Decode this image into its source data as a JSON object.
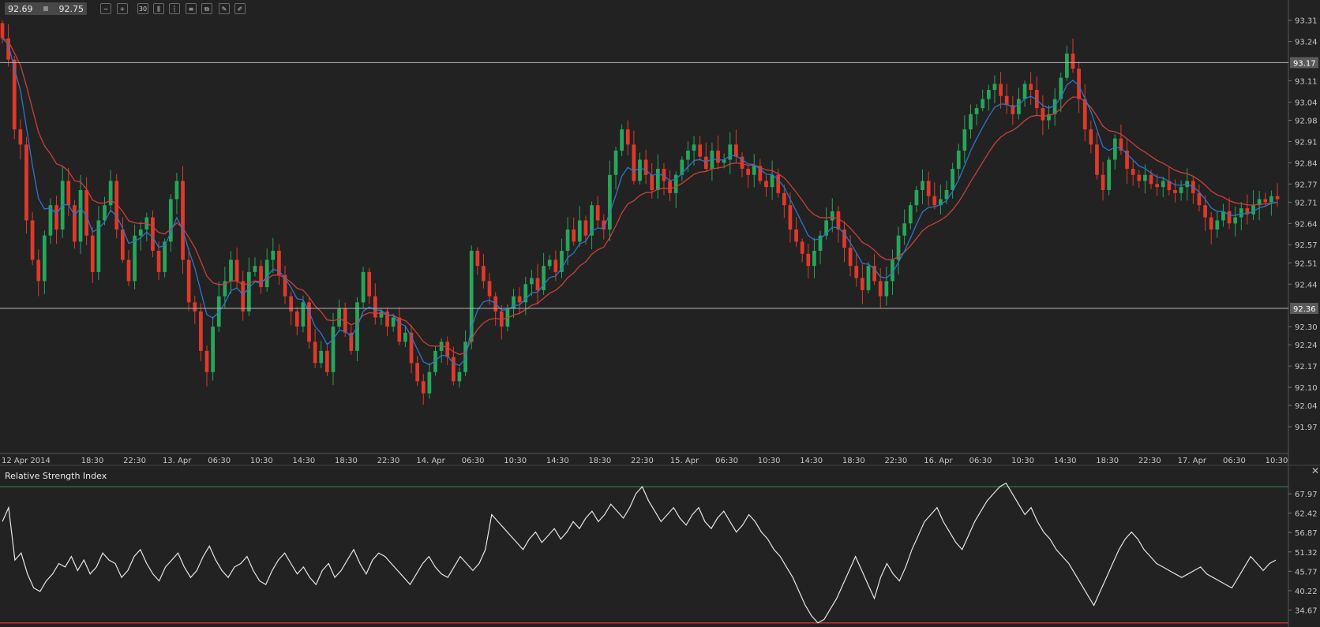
{
  "header": {
    "bid": "92.69",
    "ask": "92.75"
  },
  "toolbar": [
    {
      "name": "zoom-out-icon",
      "glyph": "−"
    },
    {
      "name": "zoom-in-icon",
      "glyph": "+"
    },
    {
      "name": "timeframe-button",
      "glyph": "30"
    },
    {
      "name": "bar-chart-icon",
      "glyph": "⫼"
    },
    {
      "name": "candle-chart-icon",
      "glyph": "┆"
    },
    {
      "name": "line-chart-icon",
      "glyph": "≡"
    },
    {
      "name": "copy-icon",
      "glyph": "⧉"
    },
    {
      "name": "edit-icon",
      "glyph": "✎"
    },
    {
      "name": "draw-icon",
      "glyph": "✐"
    }
  ],
  "colors": {
    "background": "#222222",
    "up_candle": "#26a65b",
    "down_candle": "#e0392b",
    "ma_fast": "#2f74c8",
    "ma_slow": "#c8403a",
    "level_line": "#b4b4b4",
    "rsi_line": "#e6e6e6",
    "rsi_upper": "#2f8f4e",
    "rsi_lower": "#c03030"
  },
  "chart_data": [
    {
      "type": "candlestick",
      "ylim": [
        91.9,
        93.34
      ],
      "y_ticks": [
        "93.31",
        "93.24",
        "93.11",
        "93.04",
        "92.98",
        "92.91",
        "92.84",
        "92.77",
        "92.71",
        "92.64",
        "92.57",
        "92.51",
        "92.44",
        "92.30",
        "92.24",
        "92.17",
        "92.10",
        "92.04",
        "91.97"
      ],
      "x_ticks": [
        "12 Apr 2014",
        "18:30",
        "22:30",
        "13. Apr",
        "06:30",
        "10:30",
        "14:30",
        "18:30",
        "22:30",
        "14. Apr",
        "06:30",
        "10:30",
        "14:30",
        "18:30",
        "22:30",
        "15. Apr",
        "06:30",
        "10:30",
        "14:30",
        "18:30",
        "22:30",
        "16. Apr",
        "06:30",
        "10:30",
        "14:30",
        "18:30",
        "22:30",
        "17. Apr",
        "06:30",
        "10:30"
      ],
      "levels": [
        "93.17",
        "92.36"
      ],
      "closes": [
        93.25,
        93.18,
        92.95,
        92.9,
        92.65,
        92.52,
        92.45,
        92.6,
        92.7,
        92.62,
        92.78,
        92.7,
        92.58,
        92.75,
        92.6,
        92.48,
        92.65,
        92.7,
        92.78,
        92.62,
        92.52,
        92.45,
        92.6,
        92.62,
        92.66,
        92.55,
        92.48,
        92.58,
        92.72,
        92.78,
        92.52,
        92.38,
        92.35,
        92.22,
        92.15,
        92.3,
        92.4,
        92.45,
        92.52,
        92.45,
        92.35,
        92.48,
        92.5,
        92.43,
        92.52,
        92.55,
        92.47,
        92.4,
        92.35,
        92.3,
        92.38,
        92.25,
        92.18,
        92.22,
        92.15,
        92.3,
        92.36,
        92.28,
        92.22,
        92.38,
        92.48,
        92.4,
        92.33,
        92.35,
        92.3,
        92.33,
        92.25,
        92.28,
        92.18,
        92.12,
        92.08,
        92.15,
        92.22,
        92.25,
        92.2,
        92.12,
        92.15,
        92.25,
        92.55,
        92.5,
        92.45,
        92.4,
        92.35,
        92.3,
        92.36,
        92.4,
        92.38,
        92.44,
        92.46,
        92.42,
        92.5,
        92.52,
        92.48,
        92.55,
        92.62,
        92.58,
        92.65,
        92.6,
        92.7,
        92.65,
        92.62,
        92.8,
        92.88,
        92.95,
        92.9,
        92.78,
        92.85,
        92.8,
        92.75,
        92.82,
        92.78,
        92.74,
        92.8,
        92.85,
        92.88,
        92.9,
        92.86,
        92.82,
        92.88,
        92.84,
        92.85,
        92.9,
        92.86,
        92.82,
        92.8,
        92.83,
        92.78,
        92.76,
        92.8,
        92.74,
        92.7,
        92.62,
        92.58,
        92.54,
        92.5,
        92.55,
        92.6,
        92.65,
        92.68,
        92.62,
        92.56,
        92.5,
        92.46,
        92.42,
        92.5,
        92.45,
        92.4,
        92.45,
        92.52,
        92.6,
        92.64,
        92.7,
        92.75,
        92.78,
        92.73,
        92.7,
        92.72,
        92.75,
        92.82,
        92.88,
        92.95,
        93.0,
        93.02,
        93.05,
        93.08,
        93.1,
        93.06,
        93.03,
        93.0,
        93.05,
        93.1,
        93.08,
        93.02,
        92.98,
        93.0,
        93.05,
        93.12,
        93.2,
        93.15,
        93.05,
        92.95,
        92.9,
        92.8,
        92.75,
        92.85,
        92.92,
        92.88,
        92.82,
        92.8,
        92.78,
        92.8,
        92.77,
        92.76,
        92.78,
        92.75,
        92.74,
        92.76,
        92.78,
        92.74,
        92.7,
        92.66,
        92.62,
        92.65,
        92.68,
        92.64,
        92.66,
        92.69,
        92.67,
        92.7,
        92.72,
        92.71,
        92.73,
        92.72
      ],
      "series": [
        {
          "name": "",
          "kind": "moving-average-fast"
        },
        {
          "name": "",
          "kind": "moving-average-slow"
        }
      ]
    },
    {
      "type": "line",
      "title": "Relative Strength Index",
      "ylim": [
        30.5,
        72.5
      ],
      "y_ticks": [
        "67.97",
        "62.42",
        "56.87",
        "51.32",
        "45.77",
        "40.22",
        "34.67"
      ],
      "upper_level": 70,
      "lower_level": 31,
      "values": [
        60,
        64,
        49,
        51,
        45,
        41,
        40,
        43,
        45,
        48,
        47,
        50,
        46,
        49,
        45,
        47,
        51,
        49,
        48,
        44,
        46,
        50,
        52,
        48,
        45,
        43,
        47,
        49,
        51,
        47,
        44,
        46,
        50,
        53,
        49,
        46,
        44,
        47,
        48,
        50,
        46,
        43,
        42,
        46,
        49,
        51,
        48,
        45,
        47,
        44,
        42,
        46,
        48,
        44,
        46,
        49,
        52,
        48,
        45,
        49,
        51,
        50,
        48,
        46,
        44,
        42,
        45,
        48,
        50,
        47,
        45,
        44,
        47,
        50,
        48,
        46,
        48,
        52,
        62,
        60,
        58,
        56,
        54,
        52,
        55,
        57,
        54,
        56,
        58,
        55,
        57,
        60,
        58,
        61,
        63,
        60,
        62,
        65,
        63,
        61,
        64,
        68,
        70,
        66,
        63,
        60,
        62,
        64,
        61,
        59,
        62,
        64,
        60,
        58,
        61,
        63,
        60,
        57,
        59,
        62,
        60,
        57,
        55,
        52,
        50,
        47,
        44,
        40,
        36,
        33,
        31,
        32,
        35,
        38,
        42,
        46,
        50,
        46,
        42,
        38,
        44,
        48,
        45,
        43,
        47,
        52,
        56,
        60,
        62,
        64,
        60,
        57,
        54,
        52,
        56,
        60,
        63,
        66,
        68,
        70,
        71,
        68,
        65,
        62,
        64,
        60,
        57,
        55,
        52,
        50,
        48,
        45,
        42,
        39,
        36,
        40,
        44,
        48,
        52,
        55,
        57,
        55,
        52,
        50,
        48,
        47,
        46,
        45,
        44,
        45,
        46,
        47,
        45,
        44,
        43,
        42,
        41,
        44,
        47,
        50,
        48,
        46,
        48,
        49
      ],
      "series": [
        {
          "name": "",
          "kind": "rsi"
        }
      ]
    }
  ]
}
